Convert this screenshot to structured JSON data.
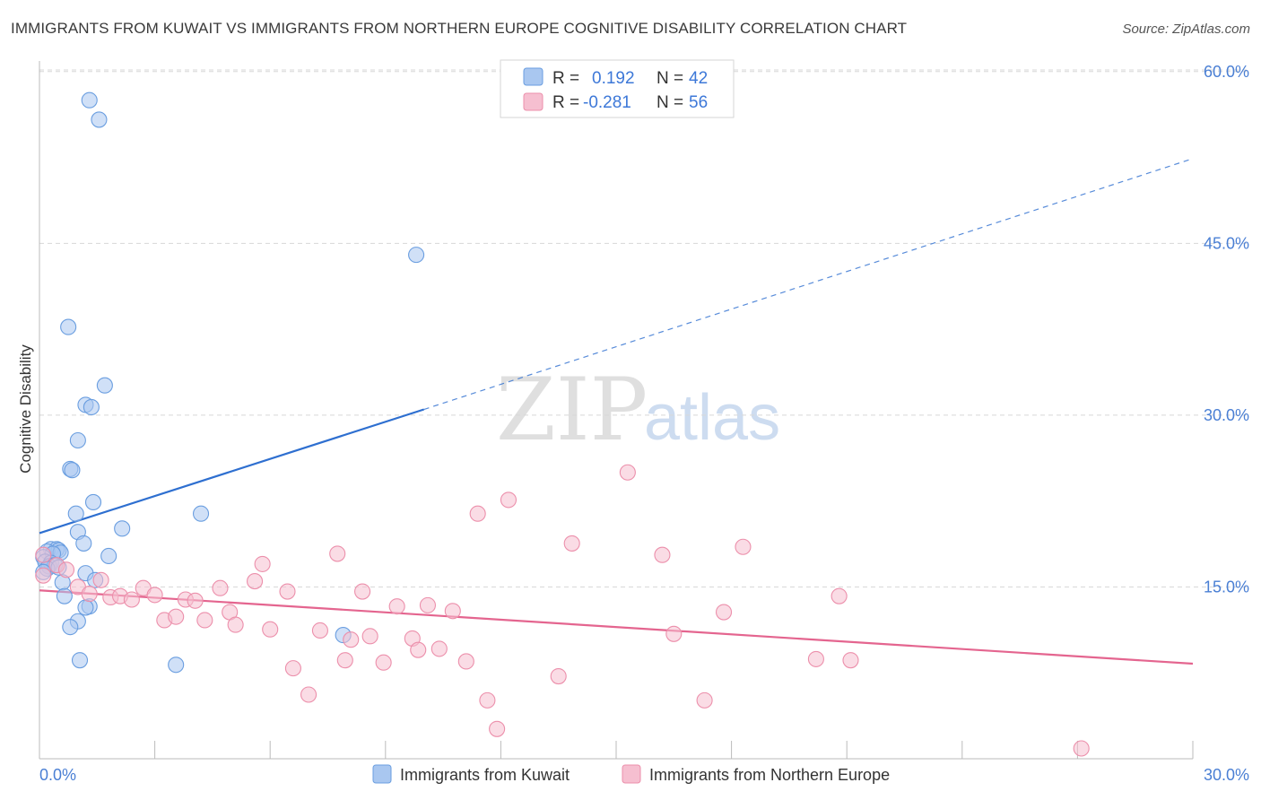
{
  "title": "IMMIGRANTS FROM KUWAIT VS IMMIGRANTS FROM NORTHERN EUROPE COGNITIVE DISABILITY CORRELATION CHART",
  "source": "Source: ZipAtlas.com",
  "watermark": {
    "zip": "ZIP",
    "atlas": "atlas"
  },
  "colors": {
    "blue_fill": "#a9c7f0",
    "blue_stroke": "#6a9ee0",
    "blue_line": "#2e6fd0",
    "pink_fill": "#f6bfd0",
    "pink_stroke": "#ec8fab",
    "pink_line": "#e4658f",
    "grid": "#d8d8d8",
    "tick_label": "#4a7fd4"
  },
  "legend_top": {
    "rows": [
      {
        "r_label": "R = ",
        "r_value": "0.192",
        "n_label": "N = ",
        "n_value": "42"
      },
      {
        "r_label": "R = ",
        "r_value": "-0.281",
        "n_label": "N = ",
        "n_value": "56"
      }
    ]
  },
  "legend_bottom": [
    "Immigrants from Kuwait",
    "Immigrants from Northern Europe"
  ],
  "chart_data": {
    "type": "scatter",
    "title": "IMMIGRANTS FROM KUWAIT VS IMMIGRANTS FROM NORTHERN EUROPE COGNITIVE DISABILITY CORRELATION CHART",
    "xlabel": "",
    "ylabel": "Cognitive Disability",
    "xlim": [
      0,
      30
    ],
    "ylim": [
      0,
      60
    ],
    "x_tick_labels": [
      "0.0%",
      "30.0%"
    ],
    "y_ticks": [
      15,
      30,
      45,
      60
    ],
    "y_tick_labels": [
      "15.0%",
      "30.0%",
      "45.0%",
      "60.0%"
    ],
    "grid": true,
    "series": [
      {
        "name": "Immigrants from Kuwait",
        "R": 0.192,
        "N": 42,
        "points": [
          [
            1.3,
            57.5
          ],
          [
            1.55,
            55.8
          ],
          [
            9.8,
            44.0
          ],
          [
            0.75,
            37.7
          ],
          [
            1.7,
            32.6
          ],
          [
            1.2,
            30.9
          ],
          [
            1.35,
            30.7
          ],
          [
            1.0,
            27.8
          ],
          [
            0.8,
            25.3
          ],
          [
            0.85,
            25.2
          ],
          [
            1.4,
            22.4
          ],
          [
            4.2,
            21.4
          ],
          [
            0.95,
            21.4
          ],
          [
            2.15,
            20.1
          ],
          [
            1.0,
            19.8
          ],
          [
            1.15,
            18.8
          ],
          [
            0.3,
            18.3
          ],
          [
            0.45,
            18.3
          ],
          [
            0.5,
            18.2
          ],
          [
            0.2,
            18.1
          ],
          [
            0.55,
            18.0
          ],
          [
            0.35,
            17.9
          ],
          [
            0.1,
            17.6
          ],
          [
            1.8,
            17.7
          ],
          [
            0.15,
            17.2
          ],
          [
            0.3,
            17.1
          ],
          [
            0.25,
            16.8
          ],
          [
            0.4,
            16.9
          ],
          [
            0.2,
            16.6
          ],
          [
            0.5,
            16.7
          ],
          [
            1.2,
            16.2
          ],
          [
            1.45,
            15.6
          ],
          [
            0.6,
            15.4
          ],
          [
            0.65,
            14.2
          ],
          [
            1.3,
            13.3
          ],
          [
            1.2,
            13.2
          ],
          [
            1.0,
            12.0
          ],
          [
            0.8,
            11.5
          ],
          [
            7.9,
            10.8
          ],
          [
            1.05,
            8.6
          ],
          [
            3.55,
            8.2
          ],
          [
            0.1,
            16.3
          ]
        ]
      },
      {
        "name": "Immigrants from Northern Europe",
        "R": -0.281,
        "N": 56,
        "points": [
          [
            0.1,
            17.8
          ],
          [
            0.45,
            16.9
          ],
          [
            0.7,
            16.5
          ],
          [
            1.0,
            15.0
          ],
          [
            1.3,
            14.4
          ],
          [
            1.6,
            15.6
          ],
          [
            1.85,
            14.1
          ],
          [
            2.1,
            14.2
          ],
          [
            2.4,
            13.9
          ],
          [
            2.7,
            14.9
          ],
          [
            3.0,
            14.3
          ],
          [
            3.25,
            12.1
          ],
          [
            3.55,
            12.4
          ],
          [
            3.8,
            13.9
          ],
          [
            4.05,
            13.8
          ],
          [
            4.3,
            12.1
          ],
          [
            4.7,
            14.9
          ],
          [
            4.95,
            12.8
          ],
          [
            5.1,
            11.7
          ],
          [
            5.6,
            15.5
          ],
          [
            5.8,
            17.0
          ],
          [
            6.0,
            11.3
          ],
          [
            6.45,
            14.6
          ],
          [
            6.6,
            7.9
          ],
          [
            7.0,
            5.6
          ],
          [
            7.3,
            11.2
          ],
          [
            7.75,
            17.9
          ],
          [
            7.95,
            8.6
          ],
          [
            8.1,
            10.4
          ],
          [
            8.4,
            14.6
          ],
          [
            8.6,
            10.7
          ],
          [
            8.95,
            8.4
          ],
          [
            9.3,
            13.3
          ],
          [
            9.7,
            10.5
          ],
          [
            9.85,
            9.5
          ],
          [
            10.1,
            13.4
          ],
          [
            10.4,
            9.6
          ],
          [
            10.75,
            12.9
          ],
          [
            11.1,
            8.5
          ],
          [
            11.4,
            21.4
          ],
          [
            11.65,
            5.1
          ],
          [
            11.9,
            2.6
          ],
          [
            12.2,
            22.6
          ],
          [
            13.5,
            7.2
          ],
          [
            13.85,
            18.8
          ],
          [
            15.3,
            25.0
          ],
          [
            16.2,
            17.8
          ],
          [
            16.5,
            10.9
          ],
          [
            17.3,
            5.1
          ],
          [
            17.8,
            12.8
          ],
          [
            18.3,
            18.5
          ],
          [
            20.2,
            8.7
          ],
          [
            20.8,
            14.2
          ],
          [
            21.1,
            8.6
          ],
          [
            27.1,
            0.9
          ],
          [
            0.1,
            16.0
          ]
        ]
      }
    ],
    "trend_lines": [
      {
        "series": "Immigrants from Kuwait",
        "x0": 0,
        "y0": 19.7,
        "x1": 10.0,
        "y1": 30.5,
        "dashed_to_x": 30,
        "dashed_to_y": 52.4
      },
      {
        "series": "Immigrants from Northern Europe",
        "x0": 0,
        "y0": 14.7,
        "x1": 30,
        "y1": 8.3
      }
    ]
  }
}
